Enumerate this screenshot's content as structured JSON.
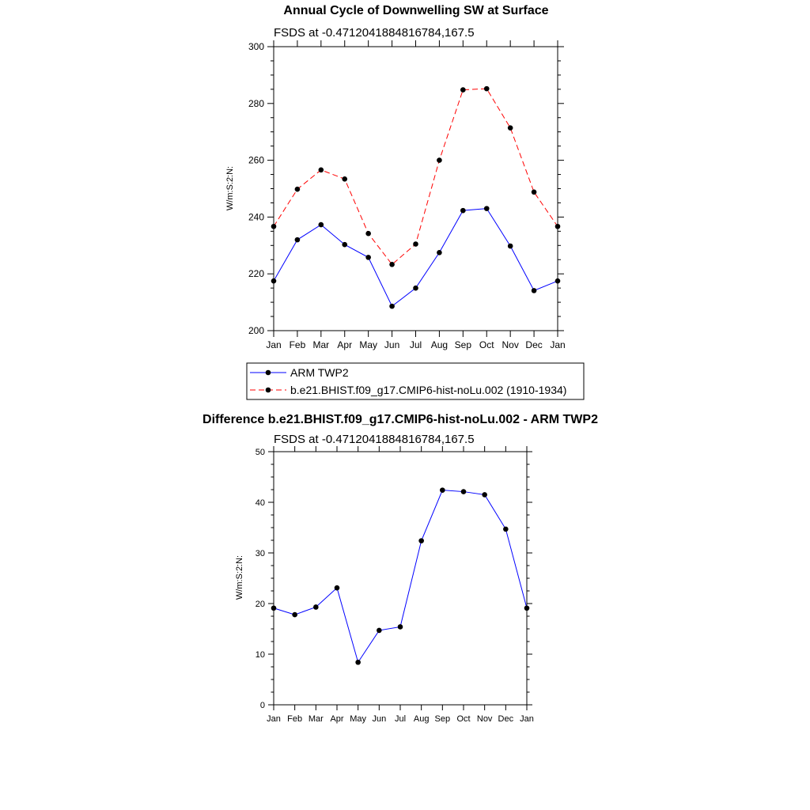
{
  "chart_data": [
    {
      "type": "line",
      "title": "Annual Cycle of Downwelling SW at Surface",
      "subtitle": "FSDS at -0.4712041884816784,167.5",
      "ylabel": "W/m:S:2:N:",
      "xlabel": "",
      "ylim": [
        200,
        300
      ],
      "yticks": [
        200,
        220,
        240,
        260,
        280,
        300
      ],
      "categories": [
        "Jan",
        "Feb",
        "Mar",
        "Apr",
        "May",
        "Jun",
        "Jul",
        "Aug",
        "Sep",
        "Oct",
        "Nov",
        "Dec",
        "Jan"
      ],
      "grid": false,
      "legend": "below",
      "series": [
        {
          "name": "ARM TWP2",
          "color": "#0000ff",
          "dash": "solid",
          "values": [
            217.5,
            232.0,
            237.3,
            230.3,
            225.8,
            208.6,
            215.0,
            227.5,
            242.3,
            243.0,
            229.8,
            214.1,
            217.5
          ]
        },
        {
          "name": "b.e21.BHIST.f09_g17.CMIP6-hist-noLu.002 (1910-1934)",
          "color": "#ff0000",
          "dash": "dashed",
          "values": [
            236.7,
            249.8,
            256.6,
            253.4,
            234.2,
            223.3,
            230.5,
            260.0,
            284.8,
            285.2,
            271.4,
            248.8,
            236.7
          ]
        }
      ]
    },
    {
      "type": "line",
      "title": "Difference b.e21.BHIST.f09_g17.CMIP6-hist-noLu.002 - ARM TWP2",
      "subtitle": "FSDS at -0.4712041884816784,167.5",
      "ylabel": "W/m:S:2:N:",
      "xlabel": "",
      "ylim": [
        0,
        50
      ],
      "yticks": [
        0,
        10,
        20,
        30,
        40,
        50
      ],
      "categories": [
        "Jan",
        "Feb",
        "Mar",
        "Apr",
        "May",
        "Jun",
        "Jul",
        "Aug",
        "Sep",
        "Oct",
        "Nov",
        "Dec",
        "Jan"
      ],
      "grid": false,
      "series": [
        {
          "name": "",
          "color": "#0000ff",
          "dash": "solid",
          "values": [
            19.1,
            17.8,
            19.3,
            23.1,
            8.4,
            14.7,
            15.4,
            32.4,
            42.4,
            42.1,
            41.5,
            34.7,
            19.1
          ]
        }
      ]
    }
  ]
}
